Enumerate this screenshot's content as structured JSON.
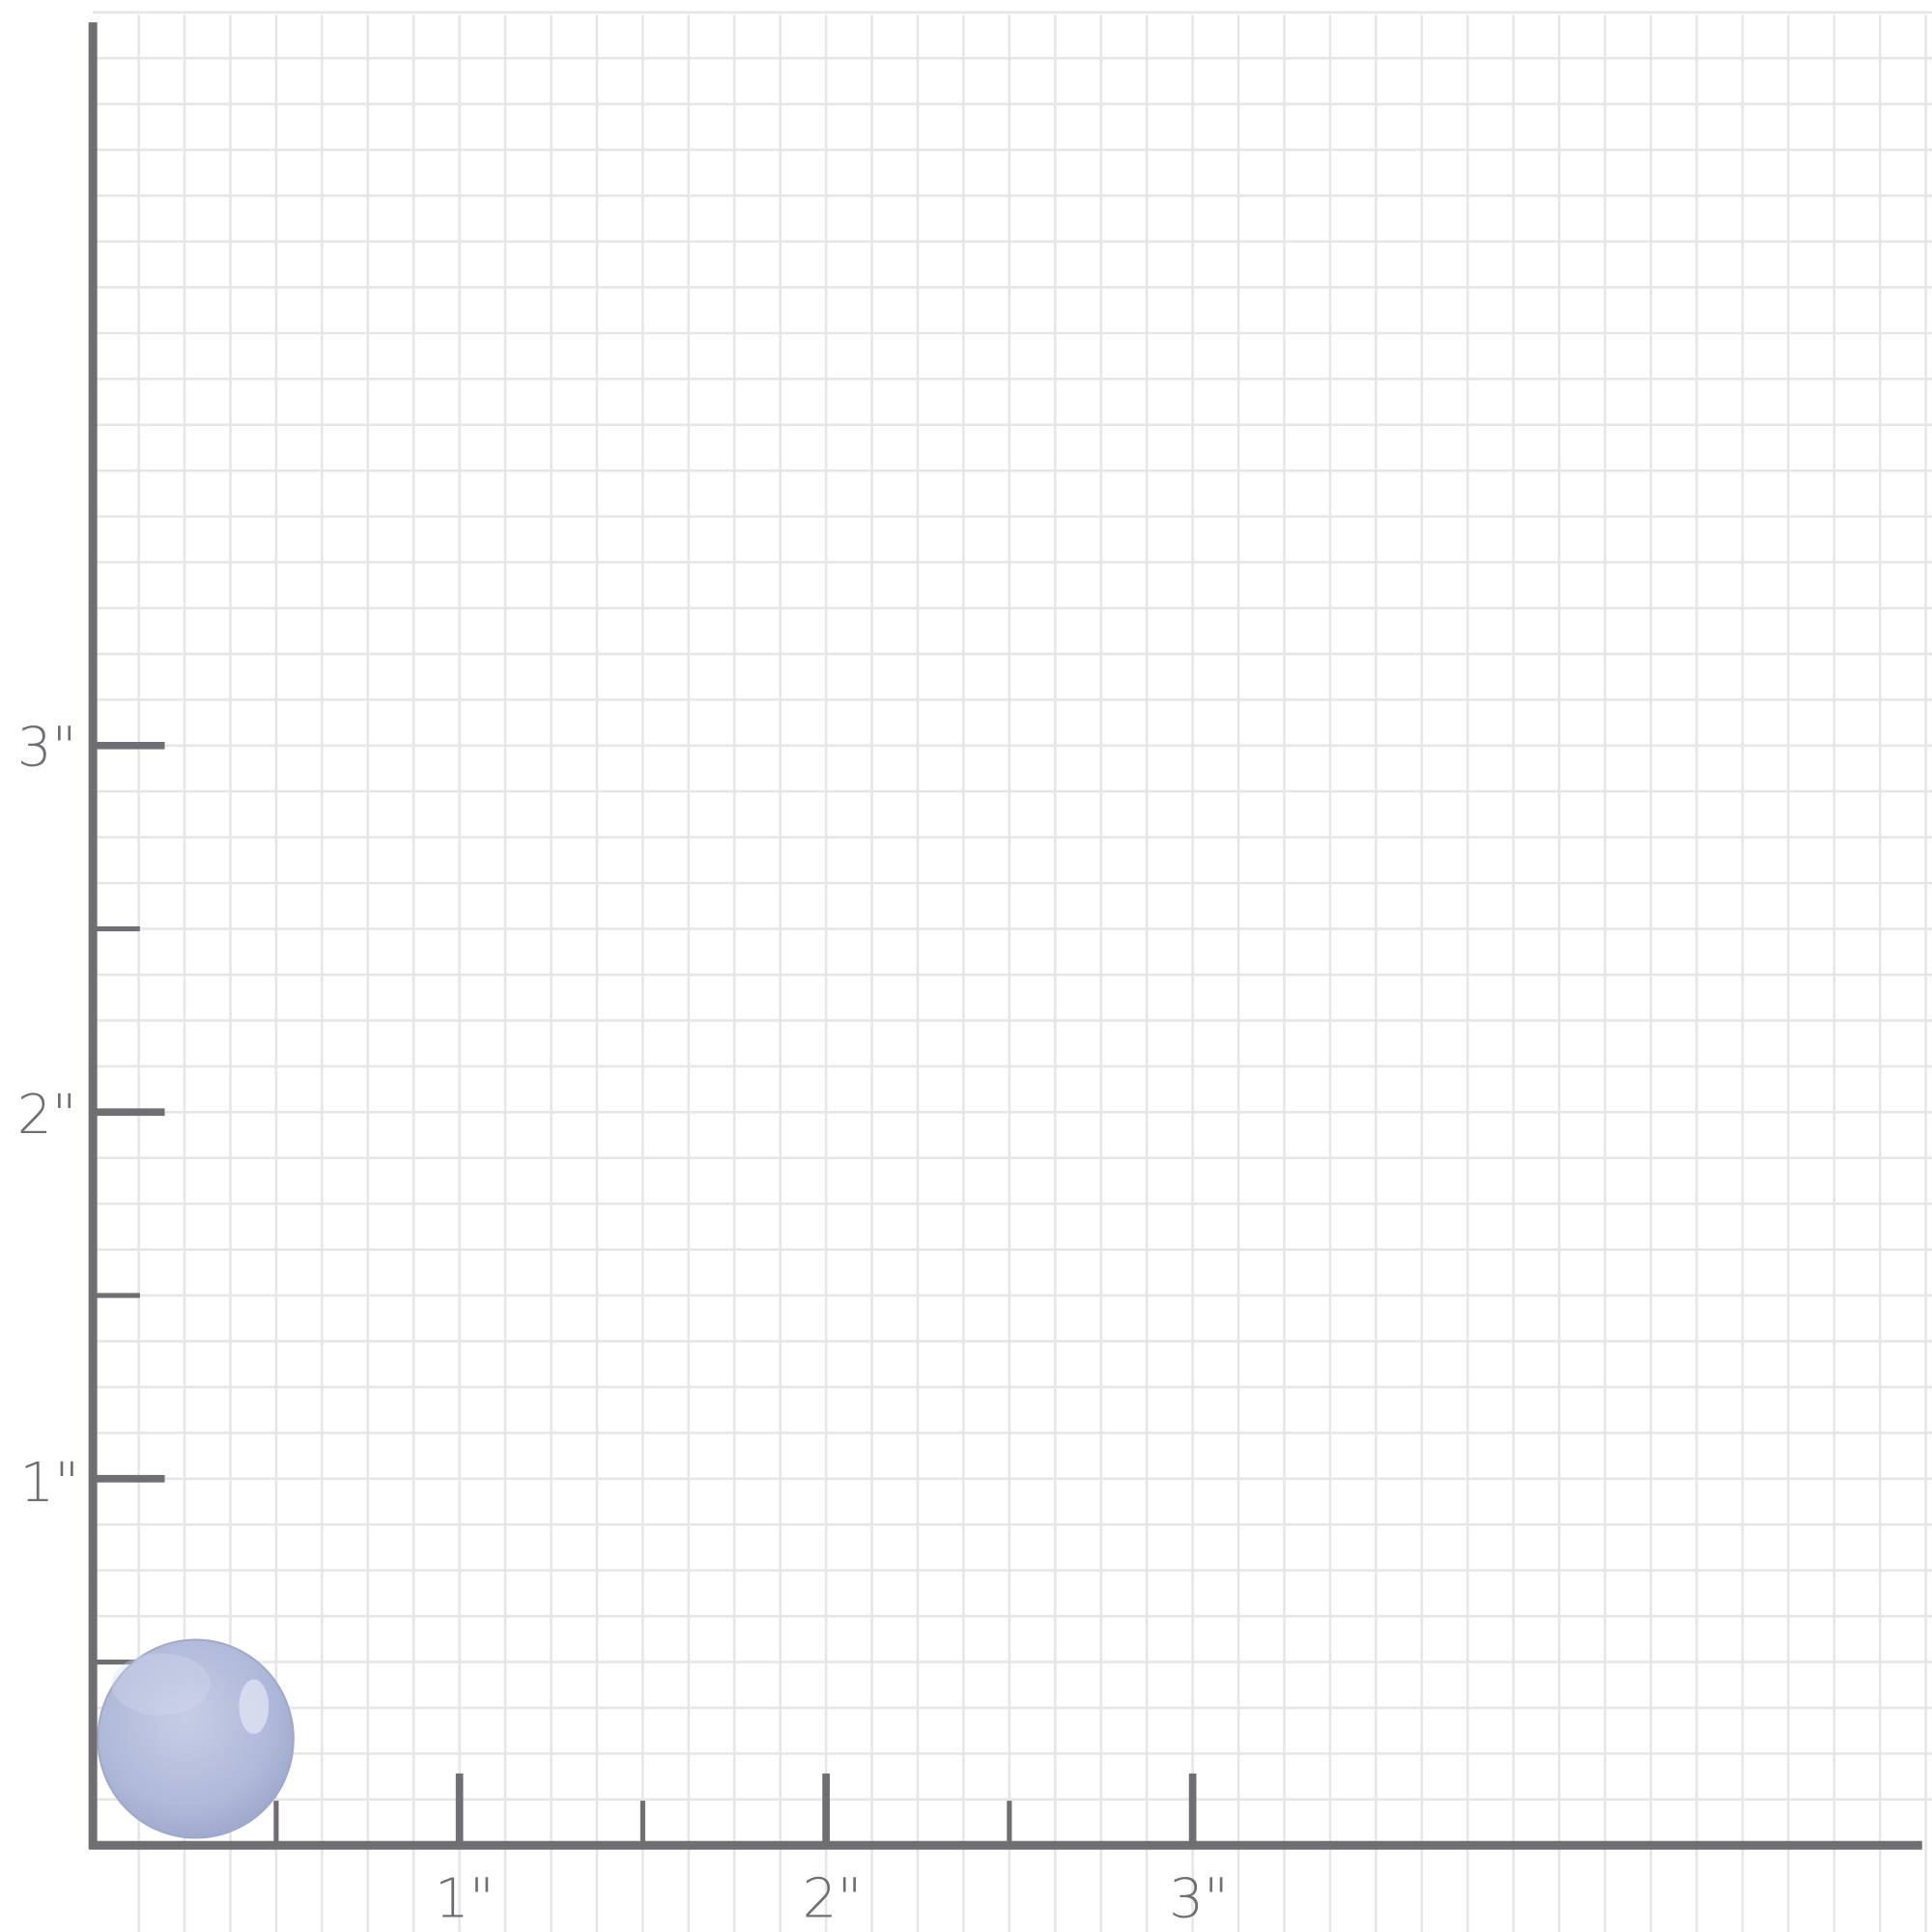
{
  "colors": {
    "axis": "#6f6f73",
    "grid": "#e6e6e6",
    "stone": "#b4bedb",
    "background": "#ffffff"
  },
  "x_axis": {
    "labels": [
      "1\"",
      "2\"",
      "3\""
    ]
  },
  "y_axis": {
    "labels": [
      "1\"",
      "2\"",
      "3\""
    ]
  },
  "object": {
    "type": "oval cabochon stone",
    "color_name": "light blue"
  }
}
